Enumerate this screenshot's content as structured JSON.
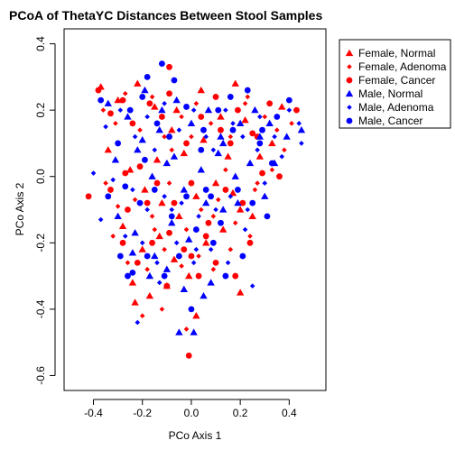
{
  "chart_data": {
    "type": "scatter",
    "title": "PCoA of ThetaYC Distances Between Stool Samples",
    "xlabel": "PCo Axis 1",
    "ylabel": "PCo Axis 2",
    "xlim": [
      -0.52,
      0.55
    ],
    "ylim": [
      -0.645,
      0.445
    ],
    "x_ticks": [
      -0.4,
      -0.2,
      0.0,
      0.2,
      0.4
    ],
    "x_tick_labels": [
      "-0.4",
      "-0.2",
      "0.0",
      "0.2",
      "0.4"
    ],
    "y_ticks": [
      -0.6,
      -0.4,
      -0.2,
      0.0,
      0.2,
      0.4
    ],
    "y_tick_labels": [
      "-0.6",
      "-0.4",
      "-0.2",
      "0.0",
      "0.2",
      "0.4"
    ],
    "grid": false,
    "legend_position": "top-right",
    "series": [
      {
        "name": "Female, Normal",
        "color": "#ff0000",
        "marker": "triangle",
        "points": [
          [
            -0.37,
            0.27
          ],
          [
            -0.3,
            0.23
          ],
          [
            -0.22,
            0.28
          ],
          [
            -0.15,
            0.21
          ],
          [
            -0.08,
            0.14
          ],
          [
            -0.03,
            0.07
          ],
          [
            0.05,
            0.11
          ],
          [
            0.12,
            0.18
          ],
          [
            0.18,
            0.28
          ],
          [
            0.22,
            0.17
          ],
          [
            0.28,
            0.06
          ],
          [
            0.33,
            0.1
          ],
          [
            0.37,
            0.21
          ],
          [
            -0.34,
            0.08
          ],
          [
            -0.25,
            0.02
          ],
          [
            -0.19,
            -0.04
          ],
          [
            -0.12,
            -0.08
          ],
          [
            -0.05,
            -0.12
          ],
          [
            0.02,
            -0.06
          ],
          [
            0.1,
            -0.02
          ],
          [
            0.17,
            -0.05
          ],
          [
            -0.28,
            -0.15
          ],
          [
            -0.2,
            -0.22
          ],
          [
            -0.13,
            -0.18
          ],
          [
            -0.07,
            -0.25
          ],
          [
            -0.01,
            -0.3
          ],
          [
            0.06,
            -0.2
          ],
          [
            0.13,
            -0.16
          ],
          [
            0.2,
            -0.1
          ],
          [
            -0.24,
            -0.32
          ],
          [
            -0.17,
            -0.36
          ],
          [
            -0.1,
            -0.33
          ],
          [
            0.02,
            -0.42
          ],
          [
            0.2,
            -0.35
          ],
          [
            -0.23,
            -0.38
          ],
          [
            -0.14,
            0.05
          ],
          [
            0.04,
            0.26
          ],
          [
            0.25,
            -0.12
          ],
          [
            -0.06,
            0.2
          ],
          [
            0.15,
            0.06
          ]
        ]
      },
      {
        "name": "Female, Adenoma",
        "color": "#ff0000",
        "marker": "diamond",
        "points": [
          [
            -0.36,
            0.2
          ],
          [
            -0.31,
            0.16
          ],
          [
            -0.27,
            0.25
          ],
          [
            -0.21,
            0.14
          ],
          [
            -0.16,
            0.24
          ],
          [
            -0.11,
            0.12
          ],
          [
            -0.04,
            0.18
          ],
          [
            0.02,
            0.22
          ],
          [
            0.08,
            0.16
          ],
          [
            0.16,
            0.12
          ],
          [
            0.23,
            0.24
          ],
          [
            0.3,
            0.18
          ],
          [
            0.35,
            0.14
          ],
          [
            0.41,
            0.16
          ],
          [
            -0.35,
            -0.02
          ],
          [
            -0.3,
            -0.09
          ],
          [
            -0.23,
            -0.07
          ],
          [
            -0.16,
            -0.12
          ],
          [
            -0.09,
            -0.02
          ],
          [
            -0.02,
            -0.16
          ],
          [
            0.04,
            -0.1
          ],
          [
            0.11,
            -0.07
          ],
          [
            0.18,
            -0.14
          ],
          [
            0.26,
            -0.04
          ],
          [
            0.33,
            0.02
          ],
          [
            -0.26,
            -0.26
          ],
          [
            -0.18,
            -0.28
          ],
          [
            -0.11,
            -0.22
          ],
          [
            -0.04,
            -0.27
          ],
          [
            0.03,
            -0.24
          ],
          [
            0.09,
            -0.28
          ],
          [
            0.16,
            -0.22
          ],
          [
            -0.2,
            -0.42
          ],
          [
            -0.12,
            -0.4
          ],
          [
            -0.02,
            -0.46
          ],
          [
            0.09,
            -0.12
          ],
          [
            0.27,
            -0.02
          ],
          [
            -0.08,
            0.08
          ],
          [
            0.22,
            0.22
          ],
          [
            0.38,
            0.08
          ],
          [
            -0.15,
            -0.16
          ],
          [
            0.0,
            0.12
          ],
          [
            0.14,
            0.02
          ],
          [
            -0.32,
            -0.18
          ],
          [
            0.24,
            -0.18
          ]
        ]
      },
      {
        "name": "Female, Cancer",
        "color": "#ff0000",
        "marker": "circle",
        "points": [
          [
            -0.38,
            0.26
          ],
          [
            -0.33,
            0.19
          ],
          [
            -0.28,
            0.23
          ],
          [
            -0.24,
            0.16
          ],
          [
            -0.17,
            0.22
          ],
          [
            -0.12,
            0.18
          ],
          [
            -0.09,
            0.25
          ],
          [
            -0.02,
            0.1
          ],
          [
            0.04,
            0.18
          ],
          [
            0.1,
            0.24
          ],
          [
            0.19,
            0.2
          ],
          [
            0.27,
            0.12
          ],
          [
            0.32,
            0.22
          ],
          [
            0.43,
            0.2
          ],
          [
            -0.42,
            -0.06
          ],
          [
            -0.33,
            -0.04
          ],
          [
            -0.26,
            -0.1
          ],
          [
            -0.21,
            0.03
          ],
          [
            -0.14,
            -0.02
          ],
          [
            -0.07,
            -0.08
          ],
          [
            0.0,
            -0.02
          ],
          [
            0.07,
            -0.14
          ],
          [
            0.14,
            -0.04
          ],
          [
            0.21,
            -0.08
          ],
          [
            0.29,
            0.01
          ],
          [
            -0.28,
            -0.2
          ],
          [
            -0.22,
            -0.26
          ],
          [
            -0.16,
            -0.2
          ],
          [
            -0.09,
            -0.17
          ],
          [
            -0.03,
            -0.22
          ],
          [
            0.03,
            -0.3
          ],
          [
            0.1,
            -0.26
          ],
          [
            0.18,
            -0.3
          ],
          [
            0.24,
            -0.2
          ],
          [
            -0.01,
            -0.54
          ],
          [
            -0.09,
            0.33
          ],
          [
            0.0,
            -0.24
          ],
          [
            0.16,
            0.1
          ],
          [
            -0.1,
            -0.33
          ],
          [
            0.06,
            -0.18
          ],
          [
            0.36,
            0.0
          ],
          [
            -0.18,
            -0.08
          ],
          [
            0.12,
            0.14
          ],
          [
            0.25,
            0.13
          ],
          [
            -0.27,
            0.01
          ]
        ]
      },
      {
        "name": "Male, Normal",
        "color": "#0000ff",
        "marker": "triangle",
        "points": [
          [
            -0.34,
            0.22
          ],
          [
            -0.26,
            0.18
          ],
          [
            -0.19,
            0.26
          ],
          [
            -0.13,
            0.14
          ],
          [
            -0.06,
            0.23
          ],
          [
            0.0,
            0.16
          ],
          [
            0.07,
            0.2
          ],
          [
            0.13,
            0.1
          ],
          [
            0.2,
            0.16
          ],
          [
            0.26,
            0.2
          ],
          [
            0.32,
            0.16
          ],
          [
            0.39,
            0.12
          ],
          [
            0.45,
            0.14
          ],
          [
            -0.31,
            0.05
          ],
          [
            -0.22,
            0.08
          ],
          [
            -0.16,
            0.0
          ],
          [
            -0.1,
            0.04
          ],
          [
            -0.03,
            -0.04
          ],
          [
            0.04,
            0.02
          ],
          [
            0.11,
            0.07
          ],
          [
            0.18,
            0.0
          ],
          [
            0.24,
            0.04
          ],
          [
            0.3,
            -0.06
          ],
          [
            -0.3,
            -0.12
          ],
          [
            -0.23,
            -0.17
          ],
          [
            -0.15,
            -0.24
          ],
          [
            -0.08,
            -0.14
          ],
          [
            -0.01,
            -0.19
          ],
          [
            0.06,
            -0.08
          ],
          [
            0.13,
            -0.1
          ],
          [
            -0.24,
            -0.23
          ],
          [
            -0.17,
            -0.3
          ],
          [
            -0.1,
            -0.28
          ],
          [
            -0.03,
            -0.34
          ],
          [
            0.05,
            -0.36
          ],
          [
            -0.05,
            -0.47
          ],
          [
            0.01,
            -0.47
          ],
          [
            0.12,
            0.12
          ],
          [
            0.34,
            0.04
          ],
          [
            -0.2,
            0.11
          ],
          [
            0.08,
            -0.32
          ],
          [
            0.28,
            0.12
          ],
          [
            -0.12,
            0.2
          ],
          [
            0.19,
            -0.08
          ],
          [
            -0.07,
            0.06
          ]
        ]
      },
      {
        "name": "Male, Adenoma",
        "color": "#0000ff",
        "marker": "diamond",
        "points": [
          [
            -0.35,
            0.15
          ],
          [
            -0.29,
            0.2
          ],
          [
            -0.23,
            0.12
          ],
          [
            -0.18,
            0.18
          ],
          [
            -0.11,
            0.22
          ],
          [
            -0.05,
            0.14
          ],
          [
            0.01,
            0.2
          ],
          [
            0.06,
            0.12
          ],
          [
            0.14,
            0.2
          ],
          [
            0.21,
            0.12
          ],
          [
            0.28,
            0.18
          ],
          [
            0.34,
            0.12
          ],
          [
            0.4,
            0.2
          ],
          [
            0.45,
            0.1
          ],
          [
            -0.4,
            0.01
          ],
          [
            -0.32,
            -0.01
          ],
          [
            -0.24,
            -0.04
          ],
          [
            -0.18,
            -0.1
          ],
          [
            -0.11,
            -0.06
          ],
          [
            -0.04,
            -0.08
          ],
          [
            0.03,
            -0.12
          ],
          [
            0.1,
            -0.1
          ],
          [
            0.16,
            -0.06
          ],
          [
            0.23,
            -0.1
          ],
          [
            0.3,
            -0.02
          ],
          [
            -0.27,
            -0.18
          ],
          [
            -0.2,
            -0.2
          ],
          [
            -0.14,
            -0.26
          ],
          [
            -0.06,
            -0.2
          ],
          [
            0.01,
            -0.26
          ],
          [
            0.08,
            -0.22
          ],
          [
            0.15,
            -0.26
          ],
          [
            0.22,
            -0.16
          ],
          [
            -0.37,
            -0.13
          ],
          [
            -0.22,
            -0.44
          ],
          [
            0.02,
            -0.22
          ],
          [
            0.37,
            0.06
          ],
          [
            -0.15,
            0.08
          ],
          [
            0.09,
            0.08
          ],
          [
            0.27,
            0.08
          ],
          [
            0.25,
            -0.33
          ],
          [
            -0.13,
            -0.32
          ],
          [
            0.17,
            0.16
          ],
          [
            -0.08,
            -0.1
          ],
          [
            0.44,
            0.16
          ]
        ]
      },
      {
        "name": "Male, Cancer",
        "color": "#0000ff",
        "marker": "circle",
        "points": [
          [
            -0.37,
            0.23
          ],
          [
            -0.3,
            0.1
          ],
          [
            -0.25,
            0.2
          ],
          [
            -0.2,
            0.24
          ],
          [
            -0.14,
            0.16
          ],
          [
            -0.12,
            0.34
          ],
          [
            -0.07,
            0.29
          ],
          [
            -0.02,
            0.21
          ],
          [
            0.05,
            0.14
          ],
          [
            0.11,
            0.2
          ],
          [
            0.17,
            0.14
          ],
          [
            0.23,
            0.26
          ],
          [
            0.29,
            0.14
          ],
          [
            0.35,
            0.18
          ],
          [
            0.4,
            0.23
          ],
          [
            -0.34,
            -0.06
          ],
          [
            -0.27,
            -0.03
          ],
          [
            -0.21,
            -0.08
          ],
          [
            -0.15,
            -0.04
          ],
          [
            -0.08,
            -0.12
          ],
          [
            -0.02,
            -0.06
          ],
          [
            0.06,
            -0.04
          ],
          [
            0.12,
            -0.14
          ],
          [
            0.19,
            -0.04
          ],
          [
            0.25,
            -0.08
          ],
          [
            0.33,
            0.04
          ],
          [
            -0.29,
            -0.24
          ],
          [
            -0.24,
            -0.29
          ],
          [
            -0.18,
            -0.24
          ],
          [
            -0.11,
            -0.3
          ],
          [
            -0.05,
            -0.24
          ],
          [
            0.02,
            -0.16
          ],
          [
            0.09,
            -0.2
          ],
          [
            0.14,
            -0.3
          ],
          [
            0.21,
            -0.24
          ],
          [
            -0.18,
            0.3
          ],
          [
            0.28,
            0.1
          ],
          [
            -0.09,
            0.12
          ],
          [
            0.08,
            -0.06
          ],
          [
            0.31,
            -0.12
          ],
          [
            -0.26,
            -0.3
          ],
          [
            0.0,
            -0.4
          ],
          [
            0.16,
            0.24
          ],
          [
            -0.19,
            0.05
          ],
          [
            0.04,
            0.08
          ]
        ]
      }
    ]
  }
}
